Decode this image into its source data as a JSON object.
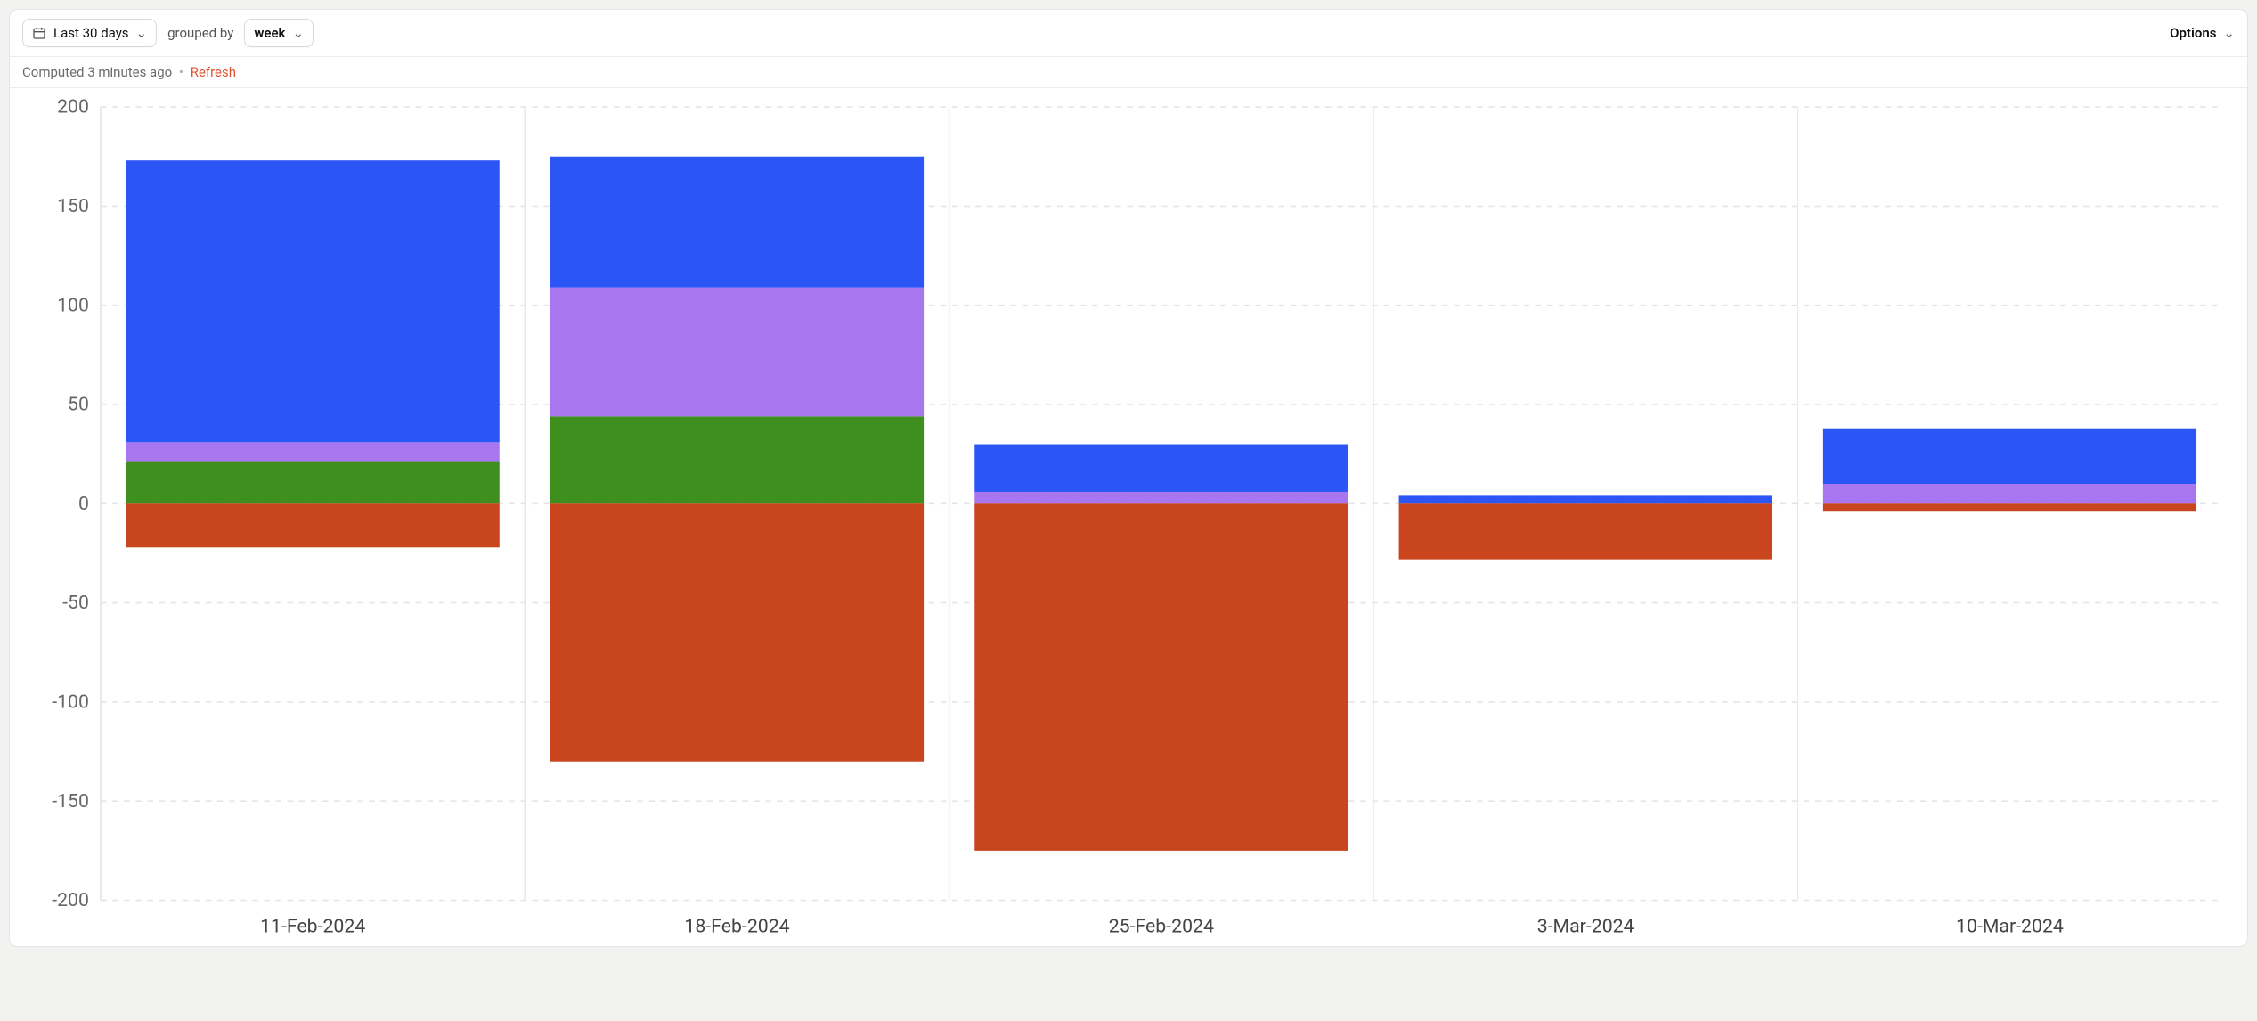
{
  "toolbar": {
    "range_label": "Last 30 days",
    "grouped_by_text": "grouped by",
    "grouping_label": "week",
    "options_label": "Options"
  },
  "status": {
    "computed_text": "Computed 3 minutes ago",
    "refresh_label": "Refresh"
  },
  "chart": {
    "type": "stacked-bar-diverging",
    "background_color": "#ffffff",
    "grid_color": "#e5e5e5",
    "column_divider_color": "#e9e9e9",
    "axis_text_color": "#666666",
    "xlabel_color": "#444444",
    "y": {
      "min": -200,
      "max": 200,
      "step": 50
    },
    "series_colors": {
      "green": "#3f8f1f",
      "purple": "#a877ef",
      "blue": "#2b55f5",
      "negative": "#c8451d"
    },
    "categories": [
      "11-Feb-2024",
      "18-Feb-2024",
      "25-Feb-2024",
      "3-Mar-2024",
      "10-Mar-2024"
    ],
    "bars": [
      {
        "pos": {
          "green": 21,
          "purple": 10,
          "blue": 142
        },
        "neg": -22
      },
      {
        "pos": {
          "green": 44,
          "purple": 65,
          "blue": 66
        },
        "neg": -130
      },
      {
        "pos": {
          "green": 0,
          "purple": 6,
          "blue": 24
        },
        "neg": -175
      },
      {
        "pos": {
          "green": 0,
          "purple": 0,
          "blue": 4
        },
        "neg": -28
      },
      {
        "pos": {
          "green": 0,
          "purple": 10,
          "blue": 28
        },
        "neg": -4
      }
    ],
    "bar_width_ratio": 0.88,
    "font_size_axis": 13
  }
}
